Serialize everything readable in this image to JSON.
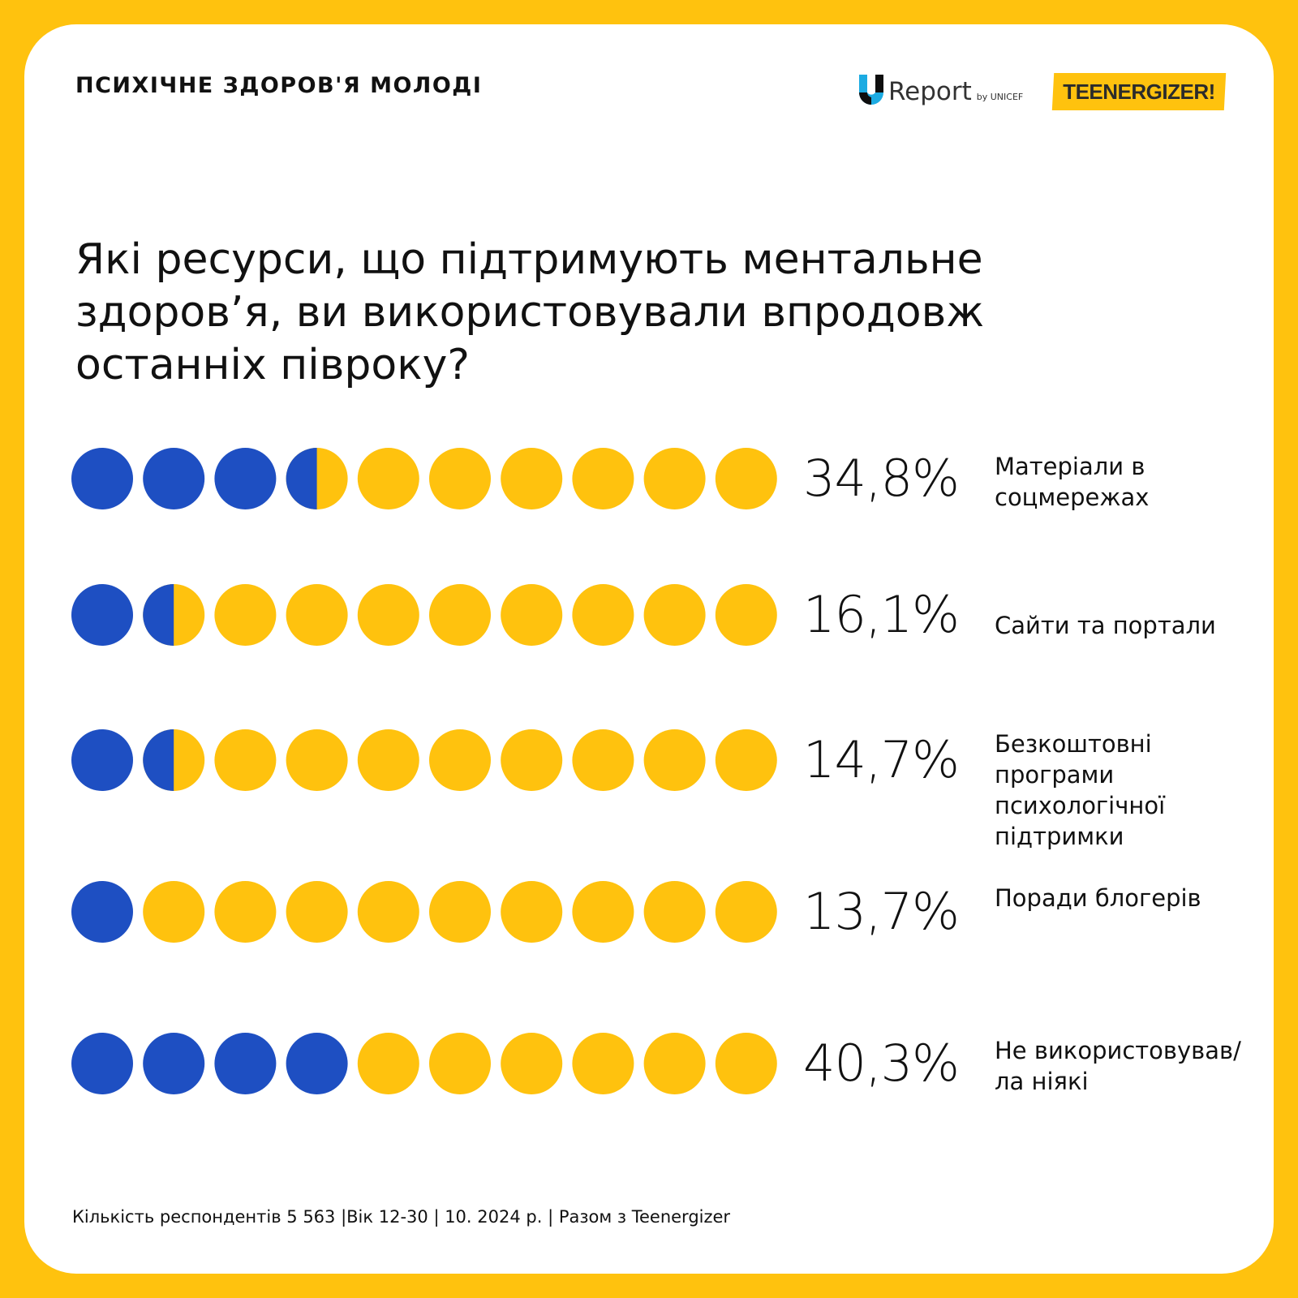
{
  "header": {
    "kicker": "психічне здоров'я молоді",
    "logo_ureport_word": "Report",
    "logo_ureport_by": "by UNICEF",
    "logo_teenergizer": "TEENERGIZER!"
  },
  "question": "Які ресурси, що підтримують ментальне здоров’я, ви використовували впродовж останніх півроку?",
  "colors": {
    "filled": "#1E4FC2",
    "empty": "#FFC20E",
    "background": "#FFC20E"
  },
  "chart_data": {
    "type": "pictogram",
    "units_per_row": 10,
    "unit_value_percent": 10,
    "rows": [
      {
        "value_label": "34,8%",
        "value": 34.8,
        "label": "Матеріали в соцмережах",
        "filled_units": 3.5
      },
      {
        "value_label": "16,1%",
        "value": 16.1,
        "label": "Сайти та портали",
        "filled_units": 1.5
      },
      {
        "value_label": "14,7%",
        "value": 14.7,
        "label": "Безкоштовні програми психологічної підтримки",
        "filled_units": 1.5
      },
      {
        "value_label": "13,7%",
        "value": 13.7,
        "label": "Поради блогерів",
        "filled_units": 1
      },
      {
        "value_label": "40,3%",
        "value": 40.3,
        "label": "Не використовував/ла ніякі",
        "filled_units": 4
      }
    ]
  },
  "footer": "Кількість респондентів 5 563 |Вік 12-30 | 10. 2024 р. | Разом з Teenergizer"
}
